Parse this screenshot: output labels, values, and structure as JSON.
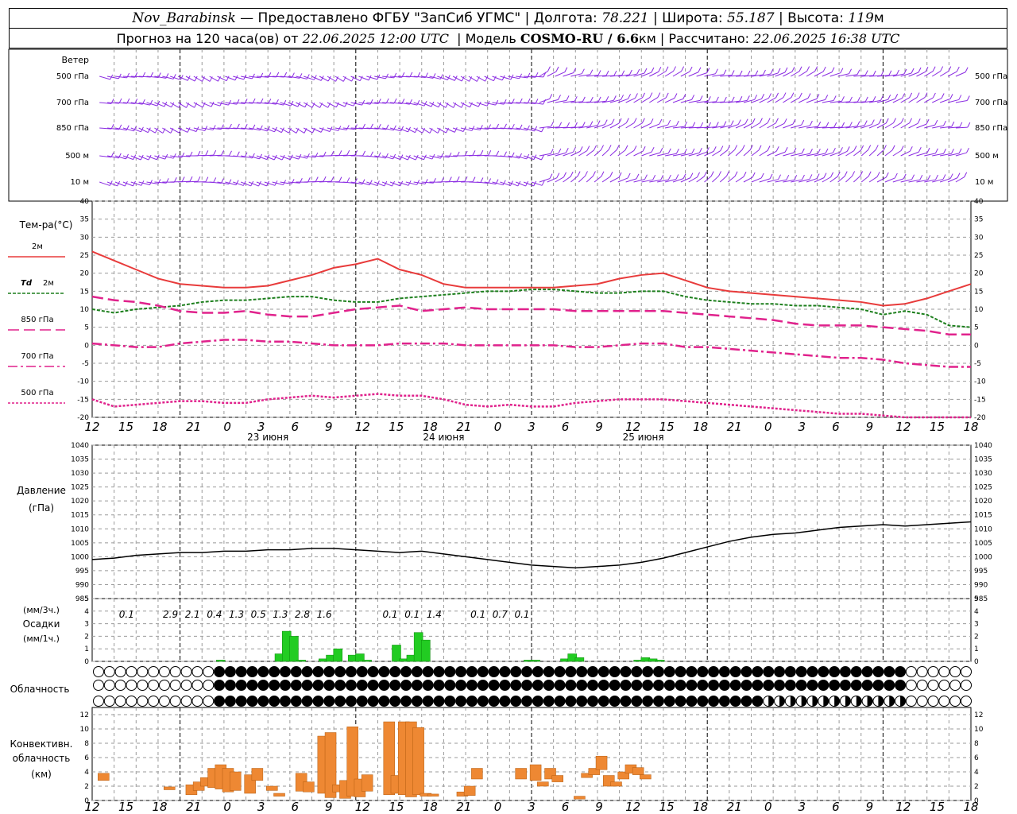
{
  "header": {
    "station": "Nov_Barabinsk",
    "provider": "— Предоставлено ФГБУ \"ЗапСиб УГМС\" |",
    "lon_label": "Долгота:",
    "lon": "78.221",
    "lat_label": "| Широта:",
    "lat": "55.187",
    "alt_label": "| Высота:",
    "alt": "119",
    "alt_unit": "м",
    "forecast_label": "Прогноз на 120 часа(ов) от",
    "forecast_start": "22.06.2025 12:00 UTC",
    "model_label": "| Модель",
    "model": "COSMO-RU / 6.6",
    "model_unit": "км",
    "calc_label": "| Рассчитано:",
    "calc_time": "22.06.2025 16:38 UTC"
  },
  "labels": {
    "wind": "Ветер",
    "wind_levels": [
      "500 гПа",
      "700 гПа",
      "850 гПа",
      "500 м",
      "10 м"
    ],
    "temp_title": "Тем-ра(°C)",
    "temp_2m": "2м",
    "td_prefix": "Td",
    "td_suffix": "2м",
    "t850": "850 гПа",
    "t700": "700 гПа",
    "t500": "500 гПа",
    "pressure_title": "Давление",
    "pressure_unit": "(гПа)",
    "precip_unit3": "(мм/3ч.)",
    "precip_title": "Осадки",
    "precip_unit1": "(мм/1ч.)",
    "cloud_title": "Облачность",
    "conv_line1": "Конвективн.",
    "conv_line2": "облачность",
    "conv_unit": "(км)"
  },
  "colors": {
    "wind": "#8a2be2",
    "t2m": "#e83b3b",
    "td": "#1d7f1d",
    "t850": "#e0228c",
    "t700": "#e0228c",
    "t500": "#e0228c",
    "pressure": "#000000",
    "precip": "#22cc22",
    "conv": "#ee8833",
    "grid": "#999999"
  },
  "chart_data": [
    {
      "type": "wind barbs",
      "levels": [
        "500 гПа",
        "700 гПа",
        "850 гПа",
        "500 м",
        "10 м"
      ],
      "time_axis_hours": [
        0,
        120
      ]
    },
    {
      "type": "line",
      "title": "Тем-ра(°C)",
      "ylim": [
        -20,
        40
      ],
      "yticks": [
        -20,
        -15,
        -10,
        -5,
        0,
        5,
        10,
        15,
        20,
        25,
        30,
        35,
        40
      ],
      "x_hours": [
        0,
        3,
        6,
        9,
        12,
        15,
        18,
        21,
        24,
        27,
        30,
        33,
        36,
        39,
        42,
        45,
        48,
        51,
        54,
        57,
        60,
        63,
        66,
        69,
        72,
        75,
        78,
        81,
        84,
        87,
        90,
        93,
        96,
        99,
        102,
        105,
        108,
        111,
        114,
        117,
        120
      ],
      "series": [
        {
          "name": "2м",
          "values": [
            26,
            23.5,
            21,
            18.5,
            17,
            16.5,
            16,
            16,
            16.5,
            18,
            19.5,
            21.5,
            22.5,
            24,
            21,
            19.5,
            17,
            16,
            16,
            16,
            16,
            16,
            16.5,
            17,
            18.5,
            19.5,
            20,
            18,
            16,
            15,
            14.5,
            14,
            13.5,
            13,
            12.5,
            12,
            11,
            11.5,
            13,
            15,
            17
          ]
        },
        {
          "name": "Td 2м",
          "values": [
            10,
            9,
            10,
            10.5,
            11,
            12,
            12.5,
            12.5,
            13,
            13.5,
            13.5,
            12.5,
            12,
            12,
            13,
            13.5,
            14,
            14.5,
            15,
            15,
            15.5,
            15.5,
            15,
            14.5,
            14.5,
            15,
            15,
            13.5,
            12.5,
            12,
            11.5,
            11.5,
            11,
            11,
            10.5,
            10,
            8.5,
            9.5,
            8.5,
            5.5,
            5
          ]
        },
        {
          "name": "850 гПа",
          "values": [
            13.5,
            12.5,
            12,
            11,
            9.5,
            9,
            9,
            9.5,
            8.5,
            8,
            8,
            9,
            10,
            10.5,
            11,
            9.5,
            10,
            10.5,
            10,
            10,
            10,
            10,
            9.5,
            9.5,
            9.5,
            9.5,
            9.5,
            9,
            8.5,
            8,
            7.5,
            7,
            6,
            5.5,
            5.5,
            5.5,
            5,
            4.5,
            4,
            3,
            3
          ]
        },
        {
          "name": "700 гПа",
          "values": [
            0.5,
            0,
            -0.5,
            -0.5,
            0.5,
            1,
            1.5,
            1.5,
            1,
            1,
            0.5,
            0,
            0,
            0,
            0.5,
            0.5,
            0.5,
            0,
            0,
            0,
            0,
            0,
            -0.5,
            -0.5,
            0,
            0.5,
            0.5,
            -0.5,
            -0.5,
            -1,
            -1.5,
            -2,
            -2.5,
            -3,
            -3.5,
            -3.5,
            -4,
            -5,
            -5.5,
            -6,
            -6
          ]
        },
        {
          "name": "500 гПа",
          "values": [
            -15,
            -17,
            -16.5,
            -16,
            -15.5,
            -15.5,
            -16,
            -16,
            -15,
            -14.5,
            -14,
            -14.5,
            -14,
            -13.5,
            -14,
            -14,
            -15,
            -16.5,
            -17,
            -16.5,
            -17,
            -17,
            -16,
            -15.5,
            -15,
            -15,
            -15,
            -15.5,
            -16,
            -16.5,
            -17,
            -17.5,
            -18,
            -18.5,
            -19,
            -19,
            -19.5,
            -20,
            -20,
            -20.5,
            -21
          ]
        }
      ]
    },
    {
      "type": "line",
      "title": "Давление",
      "ylabel": "(гПа)",
      "ylim": [
        985,
        1040
      ],
      "yticks": [
        985,
        990,
        995,
        1000,
        1005,
        1010,
        1015,
        1020,
        1025,
        1030,
        1035,
        1040
      ],
      "x_hours": [
        0,
        3,
        6,
        9,
        12,
        15,
        18,
        21,
        24,
        27,
        30,
        33,
        36,
        39,
        42,
        45,
        48,
        51,
        54,
        57,
        60,
        63,
        66,
        69,
        72,
        75,
        78,
        81,
        84,
        87,
        90,
        93,
        96,
        99,
        102,
        105,
        108,
        111,
        114,
        117,
        120
      ],
      "series": [
        {
          "name": "Давление",
          "values": [
            999,
            999.5,
            1000.5,
            1001,
            1001.5,
            1001.5,
            1002,
            1002,
            1002.5,
            1002.5,
            1003,
            1003,
            1002.5,
            1002,
            1001.5,
            1002,
            1001,
            1000,
            999,
            998,
            997,
            996.5,
            996,
            996.5,
            997,
            998,
            999.5,
            1001.5,
            1003.5,
            1005.5,
            1007,
            1008,
            1008.5,
            1009.5,
            1010.5,
            1011,
            1011.5,
            1011,
            1011.5,
            1012,
            1012.5
          ]
        }
      ]
    },
    {
      "type": "bar",
      "title": "Осадки",
      "ylabel": "(мм/1ч.)",
      "ylim": [
        0,
        5
      ],
      "totals_3h": [
        {
          "hour": 6,
          "value": "0.1"
        },
        {
          "hour": 12,
          "value": "2.9"
        },
        {
          "hour": 15,
          "value": "2.1"
        },
        {
          "hour": 18,
          "value": "0.4"
        },
        {
          "hour": 21,
          "value": "1.3"
        },
        {
          "hour": 24,
          "value": "0.5"
        },
        {
          "hour": 27,
          "value": "1.3"
        },
        {
          "hour": 30,
          "value": "2.8"
        },
        {
          "hour": 33,
          "value": "1.6"
        },
        {
          "hour": 42,
          "value": "0.1"
        },
        {
          "hour": 45,
          "value": "0.1"
        },
        {
          "hour": 48,
          "value": "1.4"
        },
        {
          "hour": 54,
          "value": "0.1"
        },
        {
          "hour": 57,
          "value": "0.7"
        },
        {
          "hour": 60,
          "value": "0.1"
        }
      ],
      "hourly": [
        {
          "hour": 17.5,
          "value": 0.1
        },
        {
          "hour": 25.5,
          "value": 0.6
        },
        {
          "hour": 26.5,
          "value": 2.4
        },
        {
          "hour": 27.5,
          "value": 2.0
        },
        {
          "hour": 28.5,
          "value": 0.1
        },
        {
          "hour": 31.5,
          "value": 0.2
        },
        {
          "hour": 32.5,
          "value": 0.5
        },
        {
          "hour": 33.5,
          "value": 1.0
        },
        {
          "hour": 35.5,
          "value": 0.5
        },
        {
          "hour": 36.5,
          "value": 0.6
        },
        {
          "hour": 37.5,
          "value": 0.1
        },
        {
          "hour": 41.5,
          "value": 1.3
        },
        {
          "hour": 42.5,
          "value": 0.2
        },
        {
          "hour": 43.5,
          "value": 0.5
        },
        {
          "hour": 44.5,
          "value": 2.3
        },
        {
          "hour": 45.5,
          "value": 1.7
        },
        {
          "hour": 59.5,
          "value": 0.1
        },
        {
          "hour": 60.5,
          "value": 0.1
        },
        {
          "hour": 64.5,
          "value": 0.2
        },
        {
          "hour": 65.5,
          "value": 0.6
        },
        {
          "hour": 66.5,
          "value": 0.3
        },
        {
          "hour": 74.5,
          "value": 0.1
        },
        {
          "hour": 75.5,
          "value": 0.3
        },
        {
          "hour": 76.5,
          "value": 0.2
        },
        {
          "hour": 77.5,
          "value": 0.1
        }
      ]
    },
    {
      "type": "bar",
      "title": "Конвективн. облачность",
      "ylabel": "(км)",
      "ylim": [
        0,
        13
      ],
      "yticks": [
        0,
        2,
        4,
        6,
        8,
        10,
        12
      ],
      "bars": [
        {
          "hour": 1.5,
          "base": 2.8,
          "top": 3.8
        },
        {
          "hour": 10.5,
          "base": 1.5,
          "top": 1.9
        },
        {
          "hour": 13.5,
          "base": 0.8,
          "top": 2.2
        },
        {
          "hour": 14.5,
          "base": 1.4,
          "top": 2.6
        },
        {
          "hour": 15.5,
          "base": 2.0,
          "top": 3.2
        },
        {
          "hour": 16.5,
          "base": 1.8,
          "top": 4.5
        },
        {
          "hour": 17.5,
          "base": 1.6,
          "top": 5.0
        },
        {
          "hour": 18.5,
          "base": 1.2,
          "top": 4.5
        },
        {
          "hour": 19.5,
          "base": 1.4,
          "top": 4.0
        },
        {
          "hour": 21.5,
          "base": 1.0,
          "top": 3.6
        },
        {
          "hour": 22.5,
          "base": 2.8,
          "top": 4.5
        },
        {
          "hour": 24.5,
          "base": 1.4,
          "top": 2.0
        },
        {
          "hour": 25.5,
          "base": 0.6,
          "top": 1.0
        },
        {
          "hour": 28.5,
          "base": 1.3,
          "top": 3.8
        },
        {
          "hour": 29.5,
          "base": 1.2,
          "top": 2.6
        },
        {
          "hour": 31.5,
          "base": 1.0,
          "top": 9.0
        },
        {
          "hour": 32.5,
          "base": 0.4,
          "top": 9.5
        },
        {
          "hour": 33.5,
          "base": 1.2,
          "top": 2.2
        },
        {
          "hour": 34.5,
          "base": 0.3,
          "top": 2.8
        },
        {
          "hour": 35.5,
          "base": 0.6,
          "top": 10.3
        },
        {
          "hour": 36.5,
          "base": 0.5,
          "top": 3.0
        },
        {
          "hour": 37.5,
          "base": 1.3,
          "top": 3.6
        },
        {
          "hour": 40.5,
          "base": 0.8,
          "top": 11.0
        },
        {
          "hour": 41.5,
          "base": 1.0,
          "top": 3.5
        },
        {
          "hour": 42.5,
          "base": 0.8,
          "top": 11.0
        },
        {
          "hour": 43.5,
          "base": 0.5,
          "top": 11.0
        },
        {
          "hour": 44.5,
          "base": 0.8,
          "top": 10.2
        },
        {
          "hour": 45.5,
          "base": 0.6,
          "top": 1.0
        },
        {
          "hour": 46.5,
          "base": 0.6,
          "top": 0.9
        },
        {
          "hour": 50.5,
          "base": 0.6,
          "top": 1.2
        },
        {
          "hour": 51.5,
          "base": 0.7,
          "top": 2.0
        },
        {
          "hour": 52.5,
          "base": 3.0,
          "top": 4.5
        },
        {
          "hour": 58.5,
          "base": 3.0,
          "top": 4.5
        },
        {
          "hour": 60.5,
          "base": 2.8,
          "top": 5.0
        },
        {
          "hour": 61.5,
          "base": 2.0,
          "top": 2.6
        },
        {
          "hour": 62.5,
          "base": 3.0,
          "top": 4.5
        },
        {
          "hour": 63.5,
          "base": 2.6,
          "top": 3.5
        },
        {
          "hour": 66.5,
          "base": 0.2,
          "top": 0.6
        },
        {
          "hour": 67.5,
          "base": 3.2,
          "top": 3.8
        },
        {
          "hour": 68.5,
          "base": 3.6,
          "top": 4.5
        },
        {
          "hour": 69.5,
          "base": 4.3,
          "top": 6.2
        },
        {
          "hour": 70.5,
          "base": 2.0,
          "top": 3.5
        },
        {
          "hour": 71.5,
          "base": 2.0,
          "top": 2.6
        },
        {
          "hour": 72.5,
          "base": 3.0,
          "top": 4.0
        },
        {
          "hour": 73.5,
          "base": 3.8,
          "top": 5.0
        },
        {
          "hour": 74.5,
          "base": 3.6,
          "top": 4.6
        },
        {
          "hour": 75.5,
          "base": 3.0,
          "top": 3.6
        }
      ]
    }
  ],
  "x_axis": {
    "tick_labels": [
      "12",
      "15",
      "18",
      "21",
      "0",
      "3",
      "6",
      "9",
      "12",
      "15",
      "18",
      "21",
      "0",
      "3",
      "6",
      "9",
      "12",
      "15",
      "18",
      "21",
      "0",
      "3",
      "6",
      "9",
      "12",
      "15",
      "18"
    ],
    "dates": [
      {
        "text": "23 июня",
        "hour": 24
      },
      {
        "text": "24 июня",
        "hour": 48
      },
      {
        "text": "25 июня",
        "hour": 72
      }
    ]
  }
}
